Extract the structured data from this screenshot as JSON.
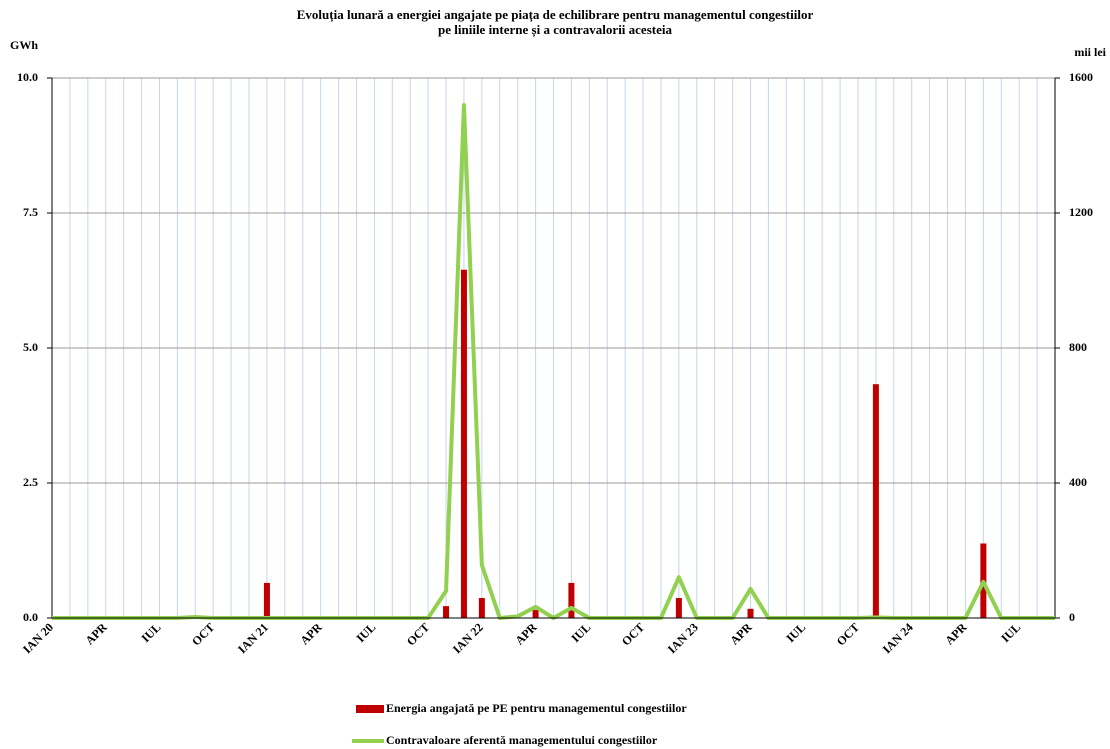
{
  "chart_data": {
    "type": "bar-line",
    "title": [
      "Evoluția lunară a energiei angajate pe piața de echilibrare pentru managementul congestiilor",
      "pe liniile interne și a contravalorii acesteia"
    ],
    "y_label": "GWh",
    "y2_label": "mii lei",
    "categories": [
      "IAN 20",
      null,
      null,
      "APR",
      null,
      null,
      "IUL",
      null,
      null,
      "OCT",
      null,
      null,
      "IAN 21",
      null,
      null,
      "APR",
      null,
      null,
      "IUL",
      null,
      null,
      "OCT",
      null,
      null,
      "IAN 22",
      null,
      null,
      "APR",
      null,
      null,
      "IUL",
      null,
      null,
      "OCT",
      null,
      null,
      "IAN 23",
      null,
      null,
      "APR",
      null,
      null,
      "IUL",
      null,
      null,
      "OCT",
      null,
      null,
      "IAN 24",
      null,
      null,
      "APR",
      null,
      null,
      "IUL",
      null,
      null
    ],
    "series": [
      {
        "name": "Energia angajată pe PE pentru managementul congestiilor",
        "kind": "bar",
        "color": "#c00000",
        "values": [
          0,
          0,
          0,
          0,
          0,
          0,
          0,
          0,
          0,
          0,
          0,
          0,
          0.65,
          0,
          0.03,
          0,
          0,
          0,
          0,
          0,
          0,
          0,
          0.22,
          6.45,
          0.37,
          0,
          0,
          0.15,
          0,
          0.65,
          0,
          0,
          0,
          0,
          0,
          0.37,
          0,
          0,
          0,
          0.17,
          0,
          0,
          0,
          0,
          0,
          0,
          4.33,
          0,
          0,
          0,
          0,
          0,
          1.38,
          0,
          0,
          0,
          0
        ]
      },
      {
        "name": "Contravaloare aferentă managementului congestiilor",
        "kind": "line",
        "color": "#92d050",
        "axis": "y2",
        "values": [
          0,
          0,
          0,
          0,
          0,
          0,
          0,
          0,
          3,
          0,
          0,
          0,
          0,
          0,
          0,
          0,
          0,
          0,
          0,
          0,
          0,
          0,
          80,
          1520,
          157,
          0,
          5,
          33,
          0,
          30,
          0,
          0,
          0,
          0,
          0,
          121,
          0,
          0,
          0,
          86,
          0,
          0,
          0,
          0,
          0,
          0,
          2,
          0,
          0,
          0,
          0,
          0,
          107,
          0,
          0,
          0,
          0
        ]
      }
    ],
    "ylim": [
      0,
      10
    ],
    "yticks": [
      {
        "value": 0,
        "label": "0.0"
      },
      2.5,
      {
        "value": 5,
        "label": "5.0"
      },
      7.5,
      {
        "value": 10,
        "label": "10.0"
      }
    ],
    "y2lim": [
      0,
      1600
    ],
    "y2ticks": [
      0,
      400,
      800,
      1200,
      1600
    ],
    "grid": true
  }
}
